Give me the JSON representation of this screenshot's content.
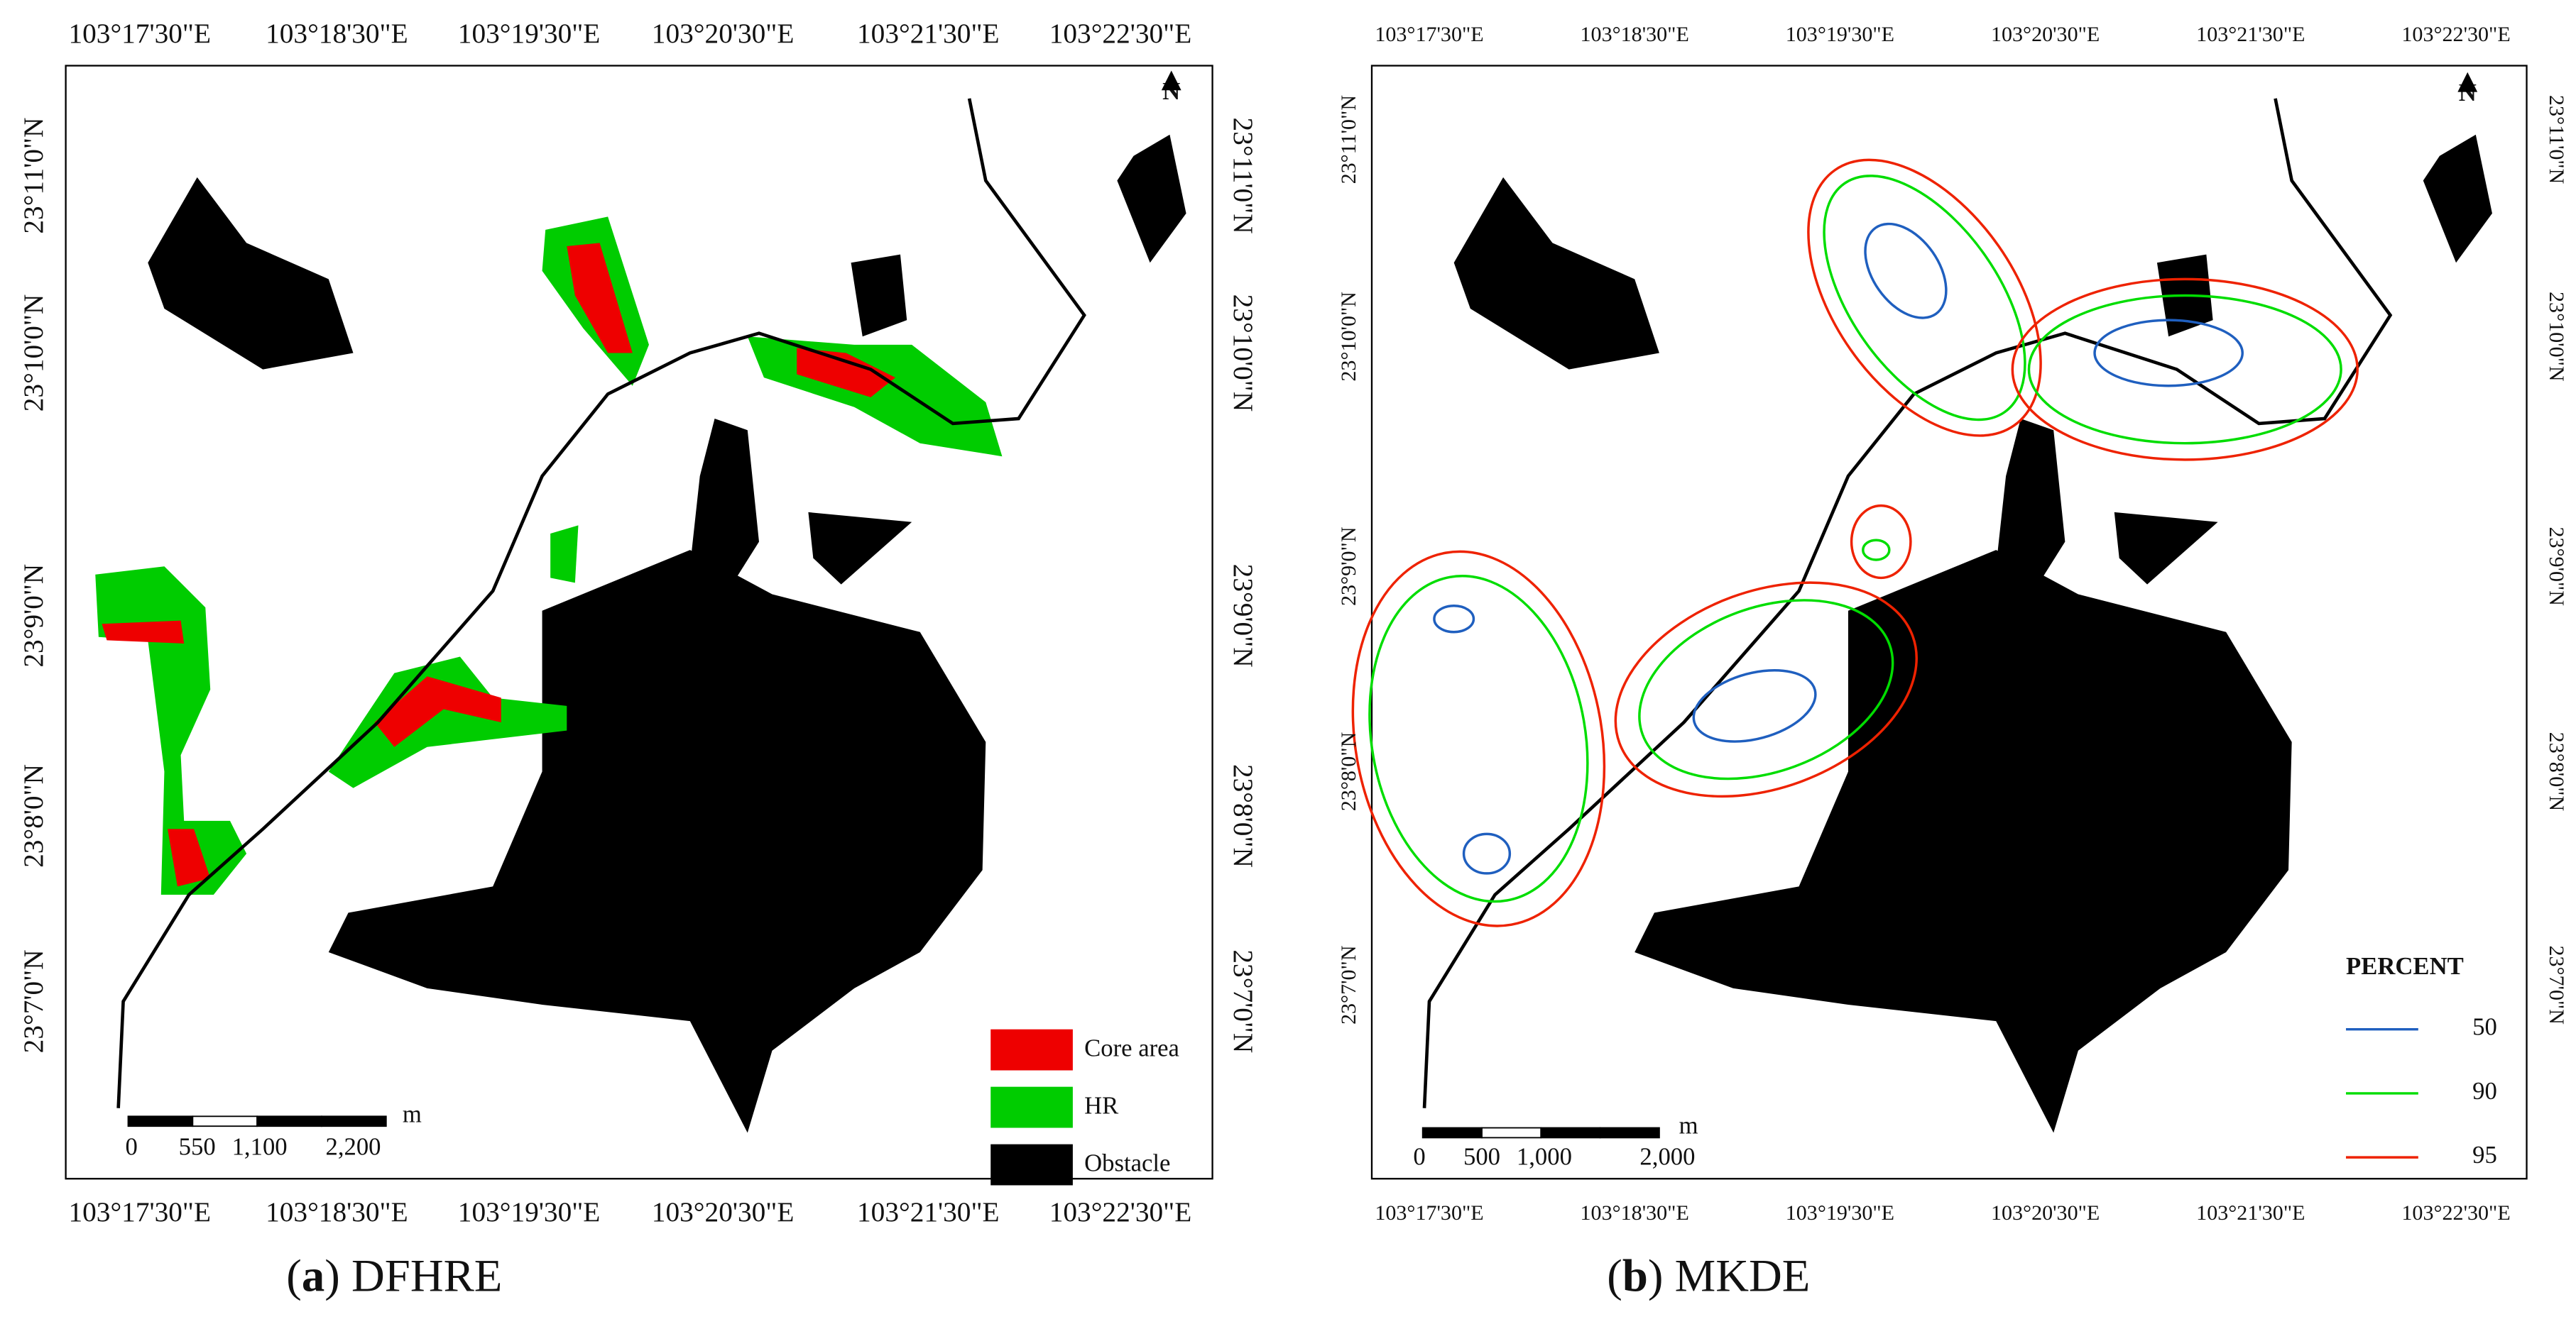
{
  "panels": [
    {
      "top_labels": [
        "103°17'30\"E",
        "103°18'30\"E",
        "103°19'30\"E",
        "103°20'30\"E",
        "103°21'30\"E",
        "103°22'30\"E"
      ],
      "bottom_labels": [
        "103°17'30\"E",
        "103°18'30\"E",
        "103°19'30\"E",
        "103°20'30\"E",
        "103°21'30\"E",
        "103°22'30\"E"
      ],
      "left_labels": [
        "23°11'0\"N",
        "23°10'0\"N",
        "23°9'0\"N",
        "23°8'0\"N",
        "23°7'0\"N"
      ],
      "right_labels": [
        "23°11'0\"N",
        "23°10'0\"N",
        "23°9'0\"N",
        "23°8'0\"N",
        "23°7'0\"N"
      ],
      "north": "N",
      "scale": {
        "ticks": [
          "0",
          "550",
          "1,100",
          "2,200"
        ],
        "unit": "m"
      },
      "legend": {
        "items": [
          "Core area",
          "HR",
          "Obstacle"
        ]
      },
      "caption": [
        "(",
        "a",
        ") DFHRE"
      ]
    },
    {
      "top_labels": [
        "103°17'30\"E",
        "103°18'30\"E",
        "103°19'30\"E",
        "103°20'30\"E",
        "103°21'30\"E",
        "103°22'30\"E"
      ],
      "bottom_labels": [
        "103°17'30\"E",
        "103°18'30\"E",
        "103°19'30\"E",
        "103°20'30\"E",
        "103°21'30\"E",
        "103°22'30\"E"
      ],
      "left_labels": [
        "23°11'0\"N",
        "23°10'0\"N",
        "23°9'0\"N",
        "23°8'0\"N",
        "23°7'0\"N"
      ],
      "right_labels": [
        "23°11'0\"N",
        "23°10'0\"N",
        "23°9'0\"N",
        "23°8'0\"N",
        "23°7'0\"N"
      ],
      "north": "N",
      "scale": {
        "ticks": [
          "0",
          "500",
          "1,000",
          "2,000"
        ],
        "unit": "m"
      },
      "legend": {
        "title": "PERCENT",
        "items": [
          "50",
          "90",
          "95"
        ]
      },
      "caption": [
        "(",
        "b",
        ") MKDE"
      ]
    }
  ]
}
